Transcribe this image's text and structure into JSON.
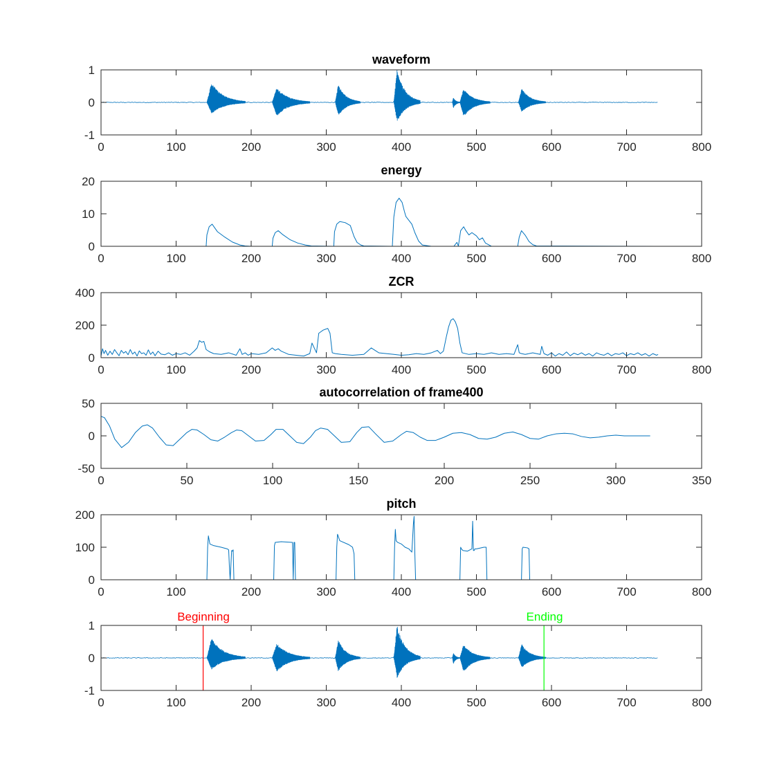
{
  "figure": {
    "background": "#ffffff",
    "line_color": "#0072BD",
    "axis_color": "#262626"
  },
  "chart_data": [
    {
      "type": "line",
      "title": "waveform",
      "xlabel": "",
      "ylabel": "",
      "xlim": [
        0,
        800
      ],
      "ylim": [
        -1,
        1
      ],
      "xticks": [
        0,
        100,
        200,
        300,
        400,
        500,
        600,
        700,
        800
      ],
      "yticks": [
        -1,
        0,
        1
      ],
      "grid": false,
      "series": [
        {
          "style": "waveform",
          "x_end": 742,
          "noise_amplitude": 0.01,
          "bursts": [
            {
              "start": 141,
              "end": 192,
              "peak_pos": 0.6,
              "peak_neg": -0.35
            },
            {
              "start": 228,
              "end": 278,
              "peak_pos": 0.45,
              "peak_neg": -0.42
            },
            {
              "start": 312,
              "end": 345,
              "peak_pos": 0.55,
              "peak_neg": -0.42
            },
            {
              "start": 390,
              "end": 425,
              "peak_pos": 1.0,
              "peak_neg": -0.62
            },
            {
              "start": 468,
              "end": 478,
              "peak_pos": 0.15,
              "peak_neg": -0.18
            },
            {
              "start": 478,
              "end": 518,
              "peak_pos": 0.42,
              "peak_neg": -0.45
            },
            {
              "start": 556,
              "end": 592,
              "peak_pos": 0.42,
              "peak_neg": -0.3
            }
          ]
        }
      ]
    },
    {
      "type": "line",
      "title": "energy",
      "xlabel": "",
      "ylabel": "",
      "xlim": [
        0,
        800
      ],
      "ylim": [
        0,
        20
      ],
      "xticks": [
        0,
        100,
        200,
        300,
        400,
        500,
        600,
        700,
        800
      ],
      "yticks": [
        0,
        10,
        20
      ],
      "grid": false,
      "series": [
        {
          "x": [
            0,
            140,
            141,
            144,
            148,
            155,
            165,
            175,
            185,
            192,
            200,
            228,
            229,
            232,
            236,
            242,
            252,
            262,
            272,
            280,
            310,
            311,
            314,
            318,
            325,
            332,
            337,
            341,
            346,
            350,
            388,
            390,
            393,
            397,
            401,
            404,
            406,
            410,
            414,
            418,
            423,
            428,
            440,
            470,
            474,
            476,
            479,
            483,
            486,
            490,
            494,
            500,
            504,
            508,
            512,
            520,
            555,
            557,
            560,
            565,
            570,
            575,
            580,
            742
          ],
          "y": [
            0,
            0,
            3.5,
            6.0,
            6.8,
            4.5,
            2.8,
            1.3,
            0.4,
            0.1,
            0,
            0,
            2.5,
            4.2,
            4.8,
            3.6,
            2.0,
            1.0,
            0.4,
            0.1,
            0,
            4.5,
            6.8,
            7.6,
            7.3,
            6.4,
            3.0,
            1.2,
            0.4,
            0.1,
            0,
            9.0,
            13.5,
            14.8,
            13.5,
            10.8,
            9.2,
            8.0,
            6.8,
            4.2,
            1.6,
            0.4,
            0,
            0,
            1.2,
            0.1,
            4.8,
            6.0,
            4.8,
            3.5,
            4.2,
            3.2,
            2.0,
            2.6,
            1.0,
            0,
            0,
            2.8,
            4.8,
            3.4,
            1.5,
            0.5,
            0.1,
            0
          ]
        }
      ]
    },
    {
      "type": "line",
      "title": "ZCR",
      "xlabel": "",
      "ylabel": "",
      "xlim": [
        0,
        800
      ],
      "ylim": [
        0,
        400
      ],
      "xticks": [
        0,
        100,
        200,
        300,
        400,
        500,
        600,
        700,
        800
      ],
      "yticks": [
        0,
        200,
        400
      ],
      "grid": false,
      "series": [
        {
          "x": [
            0,
            2,
            4,
            6,
            9,
            12,
            15,
            18,
            21,
            24,
            27,
            30,
            33,
            36,
            39,
            42,
            45,
            48,
            51,
            54,
            57,
            60,
            63,
            66,
            69,
            72,
            76,
            80,
            85,
            90,
            95,
            100,
            106,
            112,
            118,
            124,
            128,
            131,
            134,
            137,
            140,
            145,
            150,
            160,
            170,
            180,
            185,
            188,
            192,
            196,
            200,
            210,
            220,
            228,
            232,
            236,
            240,
            245,
            250,
            260,
            270,
            278,
            281,
            284,
            287,
            290,
            293,
            296,
            299,
            302,
            305,
            308,
            312,
            320,
            335,
            350,
            360,
            365,
            370,
            380,
            390,
            400,
            410,
            420,
            430,
            440,
            448,
            452,
            456,
            460,
            463,
            466,
            469,
            472,
            475,
            478,
            481,
            490,
            500,
            510,
            520,
            530,
            540,
            550,
            555,
            557,
            560,
            565,
            575,
            585,
            587,
            590,
            595,
            600,
            605,
            610,
            615,
            620,
            625,
            630,
            635,
            640,
            645,
            650,
            655,
            660,
            665,
            670,
            675,
            680,
            685,
            690,
            695,
            700,
            705,
            710,
            715,
            720,
            725,
            730,
            735,
            740,
            742
          ],
          "y": [
            10,
            55,
            25,
            45,
            15,
            40,
            20,
            50,
            30,
            12,
            45,
            28,
            38,
            18,
            50,
            22,
            35,
            10,
            42,
            25,
            30,
            15,
            48,
            20,
            35,
            12,
            40,
            22,
            18,
            30,
            15,
            25,
            20,
            30,
            15,
            40,
            60,
            105,
            95,
            100,
            50,
            35,
            25,
            20,
            30,
            15,
            55,
            20,
            30,
            15,
            25,
            20,
            30,
            60,
            45,
            55,
            40,
            30,
            20,
            15,
            10,
            25,
            90,
            60,
            30,
            150,
            160,
            170,
            175,
            180,
            150,
            30,
            25,
            20,
            15,
            20,
            60,
            45,
            30,
            25,
            20,
            15,
            18,
            25,
            20,
            30,
            45,
            25,
            40,
            130,
            190,
            230,
            240,
            220,
            180,
            90,
            30,
            20,
            25,
            20,
            30,
            20,
            25,
            20,
            80,
            30,
            25,
            20,
            30,
            20,
            70,
            25,
            15,
            30,
            10,
            25,
            15,
            35,
            12,
            28,
            18,
            30,
            15,
            25,
            10,
            30,
            20,
            15,
            28,
            12,
            25,
            20,
            30,
            12,
            25,
            18,
            30,
            15,
            25,
            10,
            25,
            15,
            20
          ]
        }
      ]
    },
    {
      "type": "line",
      "title": "autocorrelation of frame400",
      "xlabel": "",
      "ylabel": "",
      "xlim": [
        0,
        350
      ],
      "ylim": [
        -50,
        50
      ],
      "xticks": [
        0,
        50,
        100,
        150,
        200,
        250,
        300,
        350
      ],
      "yticks": [
        -50,
        0,
        50
      ],
      "grid": false,
      "series": [
        {
          "x": [
            0,
            2,
            5,
            8,
            12,
            16,
            20,
            24,
            27,
            30,
            34,
            38,
            42,
            46,
            50,
            53,
            56,
            60,
            64,
            68,
            72,
            76,
            79,
            82,
            86,
            90,
            95,
            99,
            102,
            106,
            110,
            114,
            118,
            122,
            125,
            128,
            132,
            136,
            140,
            145,
            149,
            152,
            156,
            160,
            165,
            170,
            175,
            178,
            182,
            186,
            190,
            195,
            200,
            205,
            210,
            215,
            220,
            225,
            230,
            235,
            240,
            245,
            250,
            255,
            260,
            265,
            270,
            275,
            280,
            285,
            290,
            295,
            300,
            305,
            310,
            315,
            320
          ],
          "y": [
            30,
            28,
            15,
            -5,
            -18,
            -10,
            5,
            15,
            17,
            12,
            -2,
            -14,
            -15,
            -5,
            5,
            10,
            9,
            2,
            -6,
            -8,
            -2,
            5,
            9,
            8,
            0,
            -8,
            -7,
            2,
            10,
            10,
            0,
            -10,
            -12,
            -2,
            8,
            12,
            10,
            0,
            -10,
            -9,
            5,
            13,
            14,
            3,
            -10,
            -8,
            2,
            7,
            5,
            -2,
            -7,
            -7,
            -2,
            4,
            5,
            2,
            -4,
            -5,
            -2,
            4,
            6,
            2,
            -4,
            -5,
            0,
            3,
            4,
            3,
            -1,
            -3,
            -2,
            0,
            1,
            0,
            0,
            0,
            0
          ]
        }
      ]
    },
    {
      "type": "line",
      "title": "pitch",
      "xlabel": "",
      "ylabel": "",
      "xlim": [
        0,
        800
      ],
      "ylim": [
        0,
        200
      ],
      "xticks": [
        0,
        100,
        200,
        300,
        400,
        500,
        600,
        700,
        800
      ],
      "yticks": [
        0,
        100,
        200
      ],
      "grid": false,
      "series": [
        {
          "x": [
            0,
            141,
            142,
            143,
            145,
            150,
            160,
            168,
            170,
            171,
            172,
            174,
            175,
            176,
            177,
            178,
            230,
            231,
            232,
            240,
            255,
            256,
            257,
            258,
            259,
            260,
            261,
            262,
            313,
            314,
            315,
            318,
            330,
            335,
            336,
            337,
            338,
            390,
            391,
            392,
            393,
            395,
            400,
            405,
            410,
            414,
            416,
            417,
            418,
            419,
            420,
            421,
            478,
            479,
            480,
            482,
            488,
            494,
            495,
            496,
            497,
            498,
            500,
            510,
            513,
            514,
            515,
            560,
            561,
            562,
            568,
            570,
            571,
            572,
            742
          ],
          "y": [
            0,
            0,
            100,
            135,
            110,
            105,
            100,
            95,
            92,
            40,
            0,
            90,
            88,
            92,
            0,
            0,
            0,
            105,
            115,
            117,
            115,
            0,
            115,
            115,
            0,
            0,
            0,
            0,
            0,
            100,
            140,
            120,
            108,
            100,
            90,
            80,
            0,
            0,
            100,
            155,
            120,
            115,
            110,
            100,
            95,
            85,
            170,
            195,
            80,
            0,
            0,
            0,
            0,
            100,
            95,
            90,
            88,
            95,
            180,
            90,
            90,
            95,
            95,
            100,
            100,
            0,
            0,
            0,
            95,
            100,
            98,
            95,
            0,
            0,
            0
          ]
        }
      ]
    },
    {
      "type": "line",
      "title": "",
      "xlabel": "",
      "ylabel": "",
      "xlim": [
        0,
        800
      ],
      "ylim": [
        -1,
        1
      ],
      "xticks": [
        0,
        100,
        200,
        300,
        400,
        500,
        600,
        700,
        800
      ],
      "yticks": [
        -1,
        0,
        1
      ],
      "grid": false,
      "series": [
        {
          "style": "waveform",
          "x_end": 742,
          "noise_amplitude": 0.01,
          "bursts": [
            {
              "start": 141,
              "end": 192,
              "peak_pos": 0.6,
              "peak_neg": -0.35
            },
            {
              "start": 228,
              "end": 278,
              "peak_pos": 0.45,
              "peak_neg": -0.42
            },
            {
              "start": 312,
              "end": 345,
              "peak_pos": 0.55,
              "peak_neg": -0.42
            },
            {
              "start": 390,
              "end": 425,
              "peak_pos": 1.0,
              "peak_neg": -0.62
            },
            {
              "start": 468,
              "end": 478,
              "peak_pos": 0.15,
              "peak_neg": -0.18
            },
            {
              "start": 478,
              "end": 518,
              "peak_pos": 0.42,
              "peak_neg": -0.45
            },
            {
              "start": 556,
              "end": 592,
              "peak_pos": 0.42,
              "peak_neg": -0.3
            }
          ]
        }
      ],
      "markers": [
        {
          "x": 136,
          "label": "Beginning",
          "color": "#ff0000"
        },
        {
          "x": 590,
          "label": "Ending",
          "color": "#00ff00"
        }
      ]
    }
  ]
}
